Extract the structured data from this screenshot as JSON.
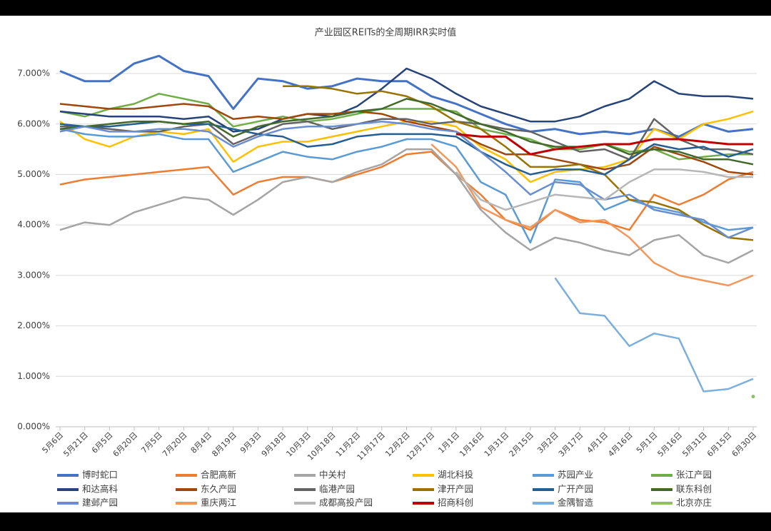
{
  "chart_data": {
    "type": "line",
    "title": "产业园区REITs的全周期IRR实时值",
    "categories": [
      "5月6日",
      "5月21日",
      "6月5日",
      "6月20日",
      "7月5日",
      "7月20日",
      "8月4日",
      "8月19日",
      "9月3日",
      "9月18日",
      "10月3日",
      "10月18日",
      "11月2日",
      "11月17日",
      "12月2日",
      "12月17日",
      "1月1日",
      "1月16日",
      "1月31日",
      "2月15日",
      "3月2日",
      "3月17日",
      "4月1日",
      "4月16日",
      "5月1日",
      "5月16日",
      "5月31日",
      "6月15日",
      "6月30日"
    ],
    "ylim": [
      0,
      7.5
    ],
    "yticks": [
      {
        "value": 0,
        "label": "0.000%"
      },
      {
        "value": 1,
        "label": "1.000%"
      },
      {
        "value": 2,
        "label": "2.000%"
      },
      {
        "value": 3,
        "label": "3.000%"
      },
      {
        "value": 4,
        "label": "4.000%"
      },
      {
        "value": 5,
        "label": "5.000%"
      },
      {
        "value": 6,
        "label": "6.000%"
      },
      {
        "value": 7,
        "label": "7.000%"
      }
    ],
    "grid": true,
    "series": [
      {
        "name": "博时蛇口",
        "color": "#4472c4",
        "values": [
          7.05,
          6.85,
          6.85,
          7.2,
          7.35,
          7.05,
          6.95,
          6.3,
          6.9,
          6.85,
          6.7,
          6.75,
          6.9,
          6.85,
          6.85,
          6.55,
          6.4,
          6.2,
          6.0,
          5.85,
          5.9,
          5.8,
          5.85,
          5.8,
          5.9,
          5.75,
          6.0,
          5.85,
          5.9
        ]
      },
      {
        "name": "合肥高新",
        "color": "#ed7d31",
        "values": [
          4.8,
          4.9,
          4.95,
          5.0,
          5.05,
          5.1,
          5.15,
          4.6,
          4.85,
          4.95,
          4.95,
          4.85,
          5.0,
          5.15,
          5.4,
          5.45,
          5.0,
          4.6,
          4.1,
          3.9,
          4.3,
          4.1,
          4.05,
          3.9,
          4.6,
          4.4,
          4.6,
          4.9,
          5.05
        ]
      },
      {
        "name": "中关村",
        "color": "#a5a5a5",
        "values": [
          3.9,
          4.05,
          4.0,
          4.25,
          4.4,
          4.55,
          4.5,
          4.2,
          4.5,
          4.85,
          4.95,
          4.85,
          5.05,
          5.2,
          5.5,
          5.5,
          5.0,
          4.3,
          3.85,
          3.5,
          3.75,
          3.65,
          3.5,
          3.4,
          3.7,
          3.8,
          3.4,
          3.25,
          3.5
        ]
      },
      {
        "name": "湖北科投",
        "color": "#ffc000",
        "values": [
          6.05,
          5.7,
          5.55,
          5.75,
          5.85,
          5.8,
          5.9,
          5.25,
          5.55,
          5.65,
          5.65,
          5.75,
          5.85,
          5.95,
          6.05,
          6.05,
          5.95,
          5.55,
          5.3,
          4.85,
          5.05,
          5.1,
          5.15,
          5.3,
          5.9,
          5.7,
          6.0,
          6.1,
          6.25
        ]
      },
      {
        "name": "苏园产业",
        "color": "#5b9bd5",
        "values": [
          5.9,
          5.8,
          5.75,
          5.75,
          5.8,
          5.7,
          5.7,
          5.05,
          5.25,
          5.45,
          5.35,
          5.3,
          5.45,
          5.55,
          5.7,
          5.7,
          5.55,
          4.85,
          4.6,
          3.65,
          4.9,
          4.85,
          4.3,
          4.5,
          4.35,
          4.25,
          4.05,
          3.9,
          3.95
        ]
      },
      {
        "name": "张江产园",
        "color": "#70ad47",
        "values": [
          6.25,
          6.15,
          6.3,
          6.4,
          6.6,
          6.5,
          6.4,
          5.95,
          6.05,
          6.15,
          6.05,
          6.1,
          6.2,
          6.3,
          6.3,
          6.3,
          6.25,
          5.9,
          5.8,
          5.7,
          5.5,
          5.5,
          5.6,
          5.45,
          5.5,
          5.3,
          5.35,
          5.4,
          5.4
        ]
      },
      {
        "name": "和达高科",
        "color": "#264478",
        "values": [
          6.25,
          6.2,
          6.15,
          6.15,
          6.15,
          6.1,
          6.15,
          5.85,
          5.9,
          6.1,
          6.2,
          6.15,
          6.35,
          6.7,
          7.1,
          6.9,
          6.6,
          6.35,
          6.2,
          6.05,
          6.05,
          6.15,
          6.35,
          6.5,
          6.85,
          6.6,
          6.55,
          6.55,
          6.5
        ]
      },
      {
        "name": "东久产园",
        "color": "#9e480e",
        "values": [
          6.4,
          6.35,
          6.3,
          6.3,
          6.35,
          6.4,
          6.35,
          6.1,
          6.15,
          6.1,
          6.2,
          6.2,
          6.25,
          6.2,
          6.05,
          5.95,
          5.85,
          5.6,
          5.4,
          5.4,
          5.3,
          5.2,
          5.1,
          5.2,
          5.55,
          5.4,
          5.25,
          5.05,
          5.0
        ]
      },
      {
        "name": "临港产园",
        "color": "#636363",
        "values": [
          5.95,
          5.95,
          5.9,
          5.85,
          5.85,
          5.95,
          6.0,
          5.6,
          5.8,
          6.0,
          6.05,
          5.9,
          6.0,
          6.1,
          6.1,
          6.0,
          6.05,
          6.0,
          5.9,
          5.85,
          5.65,
          5.45,
          5.5,
          5.3,
          6.1,
          5.7,
          5.5,
          5.5,
          5.4
        ]
      },
      {
        "name": "津开产园",
        "color": "#997300",
        "values": [
          null,
          null,
          null,
          null,
          null,
          null,
          null,
          null,
          null,
          6.75,
          6.75,
          6.7,
          6.6,
          6.65,
          6.55,
          6.35,
          6.05,
          5.9,
          5.55,
          5.15,
          5.15,
          5.2,
          5.0,
          4.5,
          4.45,
          4.3,
          4.0,
          3.75,
          3.7
        ]
      },
      {
        "name": "广开产园",
        "color": "#255e91",
        "values": [
          6.0,
          5.95,
          5.95,
          6.0,
          6.05,
          6.0,
          6.0,
          5.9,
          5.8,
          5.75,
          5.55,
          5.6,
          5.75,
          5.8,
          5.8,
          5.8,
          5.75,
          5.45,
          5.2,
          5.0,
          5.1,
          5.1,
          5.0,
          5.3,
          5.6,
          5.5,
          5.55,
          5.35,
          5.5
        ]
      },
      {
        "name": "联东科创",
        "color": "#43682b",
        "values": [
          5.9,
          5.95,
          6.0,
          6.05,
          6.05,
          6.0,
          6.05,
          5.75,
          5.95,
          6.05,
          6.1,
          6.15,
          6.25,
          6.3,
          6.5,
          6.4,
          6.2,
          6.0,
          5.85,
          5.65,
          5.55,
          5.55,
          5.6,
          5.4,
          5.5,
          5.45,
          5.3,
          5.3,
          5.2
        ]
      },
      {
        "name": "建邺产园",
        "color": "#698ed0",
        "values": [
          5.85,
          5.95,
          5.85,
          5.85,
          5.9,
          5.9,
          5.85,
          5.55,
          5.75,
          5.9,
          5.95,
          5.95,
          6.0,
          6.05,
          6.0,
          5.9,
          5.85,
          5.45,
          5.05,
          4.6,
          4.85,
          4.8,
          4.5,
          4.6,
          4.3,
          4.2,
          4.1,
          3.75,
          3.95
        ]
      },
      {
        "name": "重庆两江",
        "color": "#f1975a",
        "values": [
          null,
          null,
          null,
          null,
          null,
          null,
          null,
          null,
          null,
          null,
          null,
          null,
          null,
          null,
          null,
          5.6,
          5.15,
          4.35,
          4.1,
          3.95,
          4.3,
          4.05,
          4.1,
          3.75,
          3.25,
          3.0,
          2.9,
          2.8,
          3.0
        ]
      },
      {
        "name": "成都高投产园",
        "color": "#b7b7b7",
        "values": [
          null,
          null,
          null,
          null,
          null,
          null,
          null,
          null,
          null,
          null,
          null,
          null,
          null,
          null,
          null,
          null,
          5.05,
          4.5,
          4.3,
          4.45,
          4.6,
          4.55,
          4.5,
          4.85,
          5.1,
          5.1,
          5.05,
          4.95,
          4.95
        ]
      },
      {
        "name": "招商科创",
        "color": "#c00000",
        "values": [
          null,
          null,
          null,
          null,
          null,
          null,
          null,
          null,
          null,
          null,
          null,
          null,
          null,
          null,
          null,
          null,
          5.8,
          5.75,
          5.75,
          5.4,
          5.5,
          5.55,
          5.6,
          5.6,
          5.7,
          5.7,
          5.65,
          5.6,
          5.6
        ]
      },
      {
        "name": "金隅智造",
        "color": "#7cafdd",
        "values": [
          null,
          null,
          null,
          null,
          null,
          null,
          null,
          null,
          null,
          null,
          null,
          null,
          null,
          null,
          null,
          null,
          null,
          null,
          null,
          null,
          2.95,
          2.25,
          2.2,
          1.6,
          1.85,
          1.75,
          0.7,
          0.75,
          0.95
        ]
      },
      {
        "name": "北京亦庄",
        "color": "#8cc168",
        "values": [
          null,
          null,
          null,
          null,
          null,
          null,
          null,
          null,
          null,
          null,
          null,
          null,
          null,
          null,
          null,
          null,
          null,
          null,
          null,
          null,
          null,
          null,
          null,
          null,
          null,
          null,
          null,
          null,
          0.6
        ]
      }
    ]
  }
}
